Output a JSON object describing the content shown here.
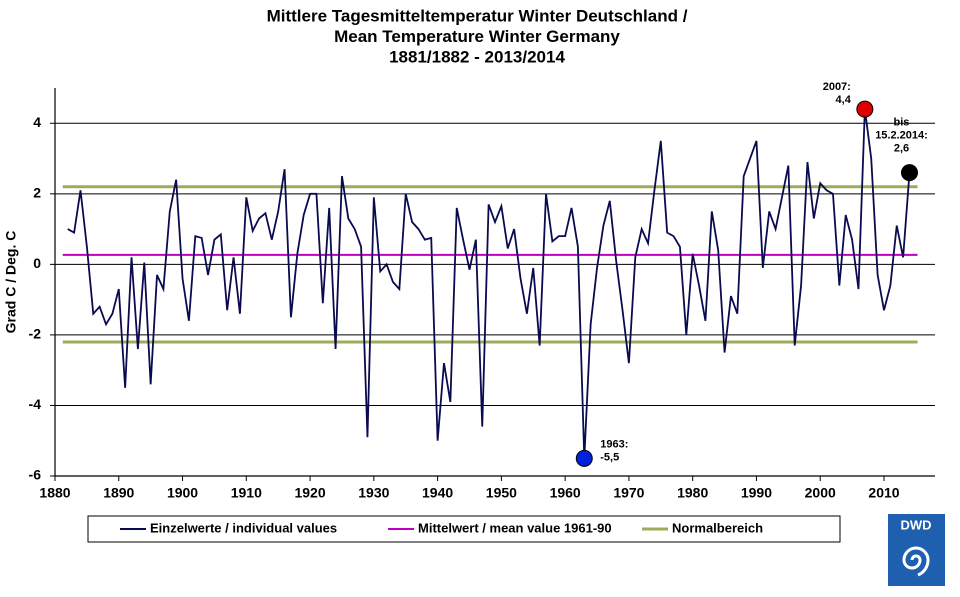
{
  "chart_data": {
    "type": "line",
    "title": [
      "Mittlere Tagesmitteltemperatur Winter  Deutschland /",
      "Mean Temperature Winter  Germany",
      "1881/1882 - 2013/2014"
    ],
    "y_label": "Grad C / Deg. C",
    "xlim": [
      1880,
      2018
    ],
    "xticks": [
      1880,
      1890,
      1900,
      1910,
      1920,
      1930,
      1940,
      1950,
      1960,
      1970,
      1980,
      1990,
      2000,
      2010
    ],
    "ylim": [
      -6,
      5
    ],
    "yticks": [
      -6,
      -4,
      -2,
      0,
      2,
      4
    ],
    "grid": true,
    "x": [
      1882,
      1883,
      1884,
      1885,
      1886,
      1887,
      1888,
      1889,
      1890,
      1891,
      1892,
      1893,
      1894,
      1895,
      1896,
      1897,
      1898,
      1899,
      1900,
      1901,
      1902,
      1903,
      1904,
      1905,
      1906,
      1907,
      1908,
      1909,
      1910,
      1911,
      1912,
      1913,
      1914,
      1915,
      1916,
      1917,
      1918,
      1919,
      1920,
      1921,
      1922,
      1923,
      1924,
      1925,
      1926,
      1927,
      1928,
      1929,
      1930,
      1931,
      1932,
      1933,
      1934,
      1935,
      1936,
      1937,
      1938,
      1939,
      1940,
      1941,
      1942,
      1943,
      1944,
      1945,
      1946,
      1947,
      1948,
      1949,
      1950,
      1951,
      1952,
      1953,
      1954,
      1955,
      1956,
      1957,
      1958,
      1959,
      1960,
      1961,
      1962,
      1963,
      1964,
      1965,
      1966,
      1967,
      1968,
      1969,
      1970,
      1971,
      1972,
      1973,
      1974,
      1975,
      1976,
      1977,
      1978,
      1979,
      1980,
      1981,
      1982,
      1983,
      1984,
      1985,
      1986,
      1987,
      1988,
      1989,
      1990,
      1991,
      1992,
      1993,
      1994,
      1995,
      1996,
      1997,
      1998,
      1999,
      2000,
      2001,
      2002,
      2003,
      2004,
      2005,
      2006,
      2007,
      2008,
      2009,
      2010,
      2011,
      2012,
      2013,
      2014
    ],
    "series": [
      {
        "name": "Einzelwerte / individual values",
        "color": "#0a0a50",
        "values": [
          1.0,
          0.9,
          2.1,
          0.5,
          -1.4,
          -1.2,
          -1.7,
          -1.4,
          -0.7,
          -3.5,
          0.2,
          -2.4,
          0.05,
          -3.4,
          -0.3,
          -0.7,
          1.5,
          2.4,
          -0.4,
          -1.6,
          0.8,
          0.75,
          -0.3,
          0.7,
          0.85,
          -1.3,
          0.2,
          -1.4,
          1.9,
          0.95,
          1.3,
          1.45,
          0.7,
          1.5,
          2.7,
          -1.5,
          0.3,
          1.4,
          2.0,
          2.0,
          -1.1,
          1.6,
          -2.4,
          2.5,
          1.3,
          1.0,
          0.5,
          -4.9,
          1.9,
          -0.2,
          0.0,
          -0.5,
          -0.7,
          2.0,
          1.2,
          1.0,
          0.7,
          0.75,
          -5.0,
          -2.8,
          -3.9,
          1.6,
          0.7,
          -0.15,
          0.7,
          -4.6,
          1.7,
          1.2,
          1.65,
          0.45,
          1.0,
          -0.4,
          -1.4,
          -0.1,
          -2.3,
          2.0,
          0.65,
          0.8,
          0.8,
          1.6,
          0.5,
          -5.5,
          -1.7,
          -0.1,
          1.1,
          1.8,
          0.1,
          -1.3,
          -2.8,
          0.2,
          1.0,
          0.6,
          2.1,
          3.5,
          0.9,
          0.8,
          0.5,
          -2.0,
          0.3,
          -0.6,
          -1.6,
          1.5,
          0.4,
          -2.5,
          -0.9,
          -1.4,
          2.5,
          3.0,
          3.5,
          -0.1,
          1.5,
          1.0,
          1.9,
          2.8,
          -2.3,
          -0.6,
          2.9,
          1.3,
          2.3,
          2.1,
          2.0,
          -0.6,
          1.4,
          0.7,
          -0.7,
          4.4,
          3.0,
          -0.3,
          -1.3,
          -0.6,
          1.1,
          0.2,
          2.6
        ]
      }
    ],
    "reference_lines": [
      {
        "name": "Mittelwert / mean value 1961-90",
        "color": "#c000c0",
        "values": [
          0.27
        ]
      },
      {
        "name": "Normalbereich",
        "color": "#9bad5a",
        "values": [
          2.2,
          -2.2
        ]
      }
    ],
    "annotations": [
      {
        "x": 2007,
        "lines": [
          "2007:",
          "4,4"
        ],
        "color": "#e00000"
      },
      {
        "x": 1963,
        "lines": [
          "1963:",
          "-5,5"
        ],
        "color": "#0022dd"
      },
      {
        "x": 2014,
        "lines": [
          "bis",
          "15.2.2014:",
          "2,6"
        ],
        "color": "#000000"
      }
    ],
    "logo": "DWD"
  }
}
